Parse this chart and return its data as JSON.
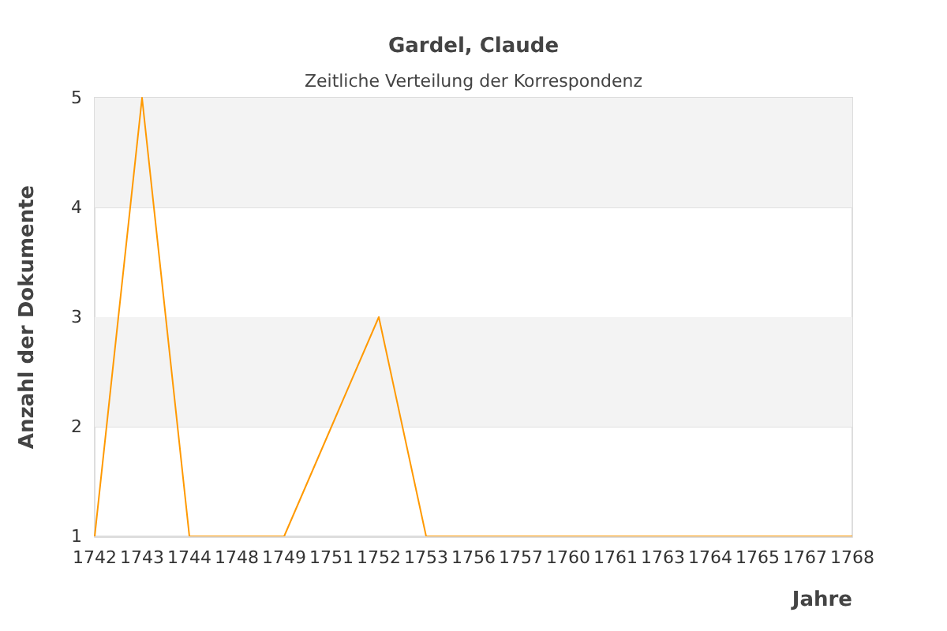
{
  "chart_data": {
    "type": "line",
    "title": "Gardel, Claude",
    "subtitle": "Zeitliche Verteilung der Korrespondenz",
    "xlabel": "Jahre",
    "ylabel": "Anzahl der Dokumente",
    "categories": [
      "1742",
      "1743",
      "1744",
      "1748",
      "1749",
      "1751",
      "1752",
      "1753",
      "1756",
      "1757",
      "1760",
      "1761",
      "1763",
      "1764",
      "1765",
      "1767",
      "1768"
    ],
    "series": [
      {
        "color": "#ff9900",
        "values": [
          1,
          5,
          1,
          1,
          1,
          2,
          3,
          1,
          1,
          1,
          1,
          1,
          1,
          1,
          1,
          1,
          1
        ]
      }
    ],
    "ylim": [
      1,
      5
    ],
    "yticks": [
      1,
      2,
      3,
      4,
      5
    ],
    "grid": "y",
    "marker": "none",
    "bands": [
      {
        "axis": "y",
        "from": 2,
        "to": 3,
        "color": "#f3f3f3"
      },
      {
        "axis": "y",
        "from": 4,
        "to": 5,
        "color": "#f3f3f3"
      }
    ]
  }
}
